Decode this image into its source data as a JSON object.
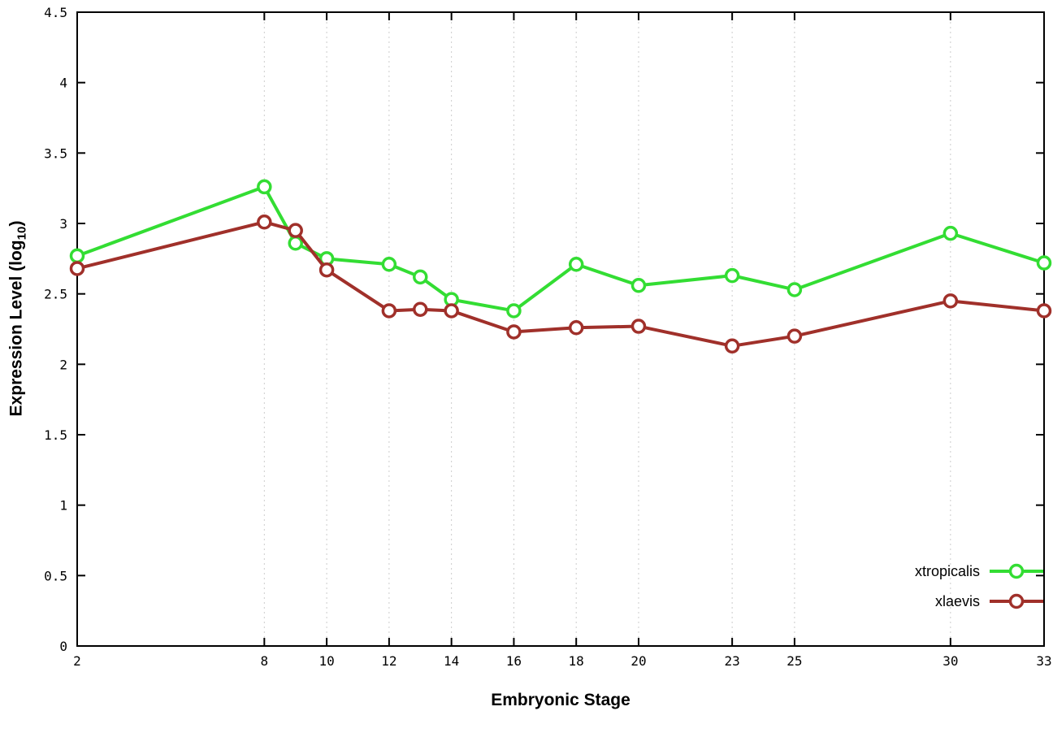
{
  "chart_data": {
    "type": "line",
    "title": "",
    "xlabel": "Embryonic Stage",
    "ylabel_prefix": "Expression Level (log",
    "ylabel_sub": "10",
    "ylabel_suffix": ")",
    "xlim": [
      2,
      33
    ],
    "ylim": [
      0,
      4.5
    ],
    "xticks": [
      2,
      8,
      10,
      12,
      14,
      16,
      18,
      20,
      23,
      25,
      30,
      33
    ],
    "yticks": [
      0,
      0.5,
      1,
      1.5,
      2,
      2.5,
      3,
      3.5,
      4,
      4.5
    ],
    "grid": "vertical-dotted",
    "grid_color": "#cccccc",
    "legend_position": "bottom-right",
    "marker": "circle-open",
    "x": [
      2,
      8,
      9,
      10,
      12,
      13,
      14,
      16,
      18,
      20,
      23,
      25,
      30,
      33
    ],
    "series": [
      {
        "name": "xtropicalis",
        "color": "#33dd33",
        "values": [
          2.77,
          3.26,
          2.86,
          2.75,
          2.71,
          2.62,
          2.46,
          2.38,
          2.71,
          2.56,
          2.63,
          2.53,
          2.93,
          2.72
        ]
      },
      {
        "name": "xlaevis",
        "color": "#a0302a",
        "values": [
          2.68,
          3.01,
          2.95,
          2.67,
          2.38,
          2.39,
          2.38,
          2.23,
          2.26,
          2.27,
          2.13,
          2.2,
          2.45,
          2.38
        ]
      }
    ]
  }
}
